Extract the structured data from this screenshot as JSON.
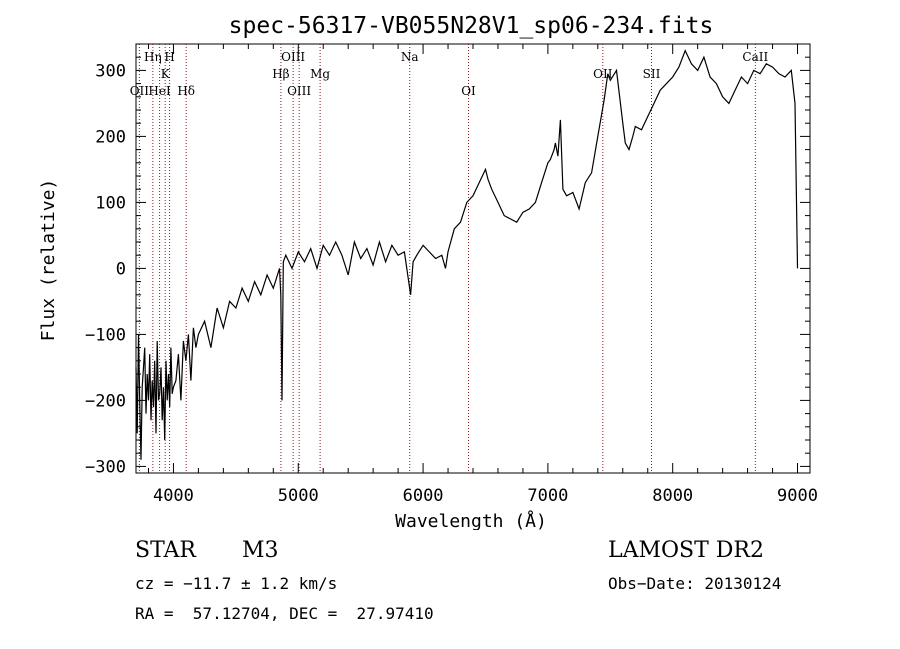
{
  "chart_data": {
    "type": "line",
    "title": "spec-56317-VB055N28V1_sp06-234.fits",
    "xlabel": "Wavelength (Å)",
    "ylabel": "Flux (relative)",
    "xlim": [
      3700,
      9100
    ],
    "ylim": [
      -310,
      340
    ],
    "xticks": [
      4000,
      5000,
      6000,
      7000,
      8000,
      9000
    ],
    "xtick_labels": [
      "4000",
      "5000",
      "6000",
      "7000",
      "8000",
      "9000"
    ],
    "yticks": [
      -300,
      -200,
      -100,
      0,
      100,
      200,
      300
    ],
    "ytick_labels": [
      "−300",
      "−200",
      "−100",
      "0",
      "100",
      "200",
      "300"
    ],
    "grid": false,
    "line_color": "#000000",
    "marker_color": "#8b1a1a",
    "spectral_lines": [
      {
        "label": "OII",
        "wavelength": 3727,
        "row": 3
      },
      {
        "label": "Hη",
        "wavelength": 3835,
        "row": 1
      },
      {
        "label": "HeI",
        "wavelength": 3889,
        "row": 3
      },
      {
        "label": "K",
        "wavelength": 3934,
        "row": 2
      },
      {
        "label": "H",
        "wavelength": 3969,
        "row": 1
      },
      {
        "label": "Hδ",
        "wavelength": 4102,
        "row": 3
      },
      {
        "label": "Hβ",
        "wavelength": 4861,
        "row": 2
      },
      {
        "label": "OIII",
        "wavelength": 4959,
        "row": 1
      },
      {
        "label": "OIII",
        "wavelength": 5007,
        "row": 3
      },
      {
        "label": "Mg",
        "wavelength": 5175,
        "row": 2
      },
      {
        "label": "Na",
        "wavelength": 5893,
        "row": 1
      },
      {
        "label": "OI",
        "wavelength": 6364,
        "row": 3
      },
      {
        "label": "OII",
        "wavelength": 7440,
        "row": 2
      },
      {
        "label": "SII",
        "wavelength": 7830,
        "row": 2
      },
      {
        "label": "CaII",
        "wavelength": 8662,
        "row": 1
      }
    ],
    "series": [
      {
        "x": [
          3700,
          3710,
          3720,
          3730,
          3740,
          3750,
          3760,
          3770,
          3780,
          3790,
          3800,
          3810,
          3820,
          3830,
          3840,
          3850,
          3860,
          3870,
          3880,
          3890,
          3900,
          3910,
          3920,
          3930,
          3940,
          3950,
          3960,
          3970,
          3980,
          3990,
          4000,
          4020,
          4040,
          4060,
          4080,
          4100,
          4120,
          4140,
          4160,
          4180,
          4200,
          4250,
          4300,
          4350,
          4400,
          4450,
          4500,
          4550,
          4600,
          4650,
          4700,
          4750,
          4800,
          4850,
          4860,
          4870,
          4880,
          4900,
          4950,
          5000,
          5050,
          5100,
          5150,
          5200,
          5250,
          5300,
          5350,
          5400,
          5450,
          5500,
          5550,
          5600,
          5650,
          5700,
          5750,
          5800,
          5850,
          5900,
          5920,
          5950,
          6000,
          6050,
          6100,
          6150,
          6180,
          6200,
          6250,
          6300,
          6350,
          6400,
          6450,
          6500,
          6520,
          6550,
          6600,
          6650,
          6700,
          6750,
          6800,
          6850,
          6900,
          6950,
          7000,
          7020,
          7050,
          7060,
          7080,
          7100,
          7120,
          7150,
          7200,
          7250,
          7300,
          7350,
          7400,
          7450,
          7480,
          7500,
          7550,
          7600,
          7620,
          7650,
          7680,
          7700,
          7750,
          7800,
          7850,
          7900,
          7950,
          8000,
          8050,
          8100,
          8150,
          8200,
          8250,
          8300,
          8350,
          8400,
          8450,
          8500,
          8550,
          8600,
          8650,
          8700,
          8750,
          8800,
          8850,
          8900,
          8950,
          8980,
          9000
        ],
        "y": [
          -150,
          -250,
          -100,
          -200,
          -290,
          -180,
          -150,
          -120,
          -220,
          -160,
          -200,
          -130,
          -230,
          -170,
          -210,
          -140,
          -250,
          -110,
          -200,
          -190,
          -150,
          -230,
          -180,
          -260,
          -140,
          -200,
          -160,
          -210,
          -120,
          -190,
          -180,
          -170,
          -130,
          -200,
          -110,
          -140,
          -100,
          -170,
          -90,
          -120,
          -100,
          -80,
          -120,
          -60,
          -90,
          -50,
          -60,
          -30,
          -50,
          -20,
          -40,
          -10,
          -30,
          0,
          -40,
          -200,
          10,
          20,
          0,
          25,
          10,
          30,
          0,
          35,
          20,
          40,
          20,
          -10,
          40,
          15,
          30,
          5,
          40,
          10,
          35,
          20,
          25,
          -40,
          10,
          20,
          35,
          25,
          15,
          20,
          0,
          25,
          60,
          70,
          100,
          110,
          130,
          150,
          135,
          120,
          100,
          80,
          75,
          70,
          85,
          90,
          100,
          130,
          160,
          165,
          180,
          190,
          170,
          225,
          120,
          110,
          115,
          90,
          130,
          145,
          200,
          255,
          295,
          285,
          300,
          220,
          190,
          180,
          200,
          215,
          210,
          230,
          250,
          270,
          280,
          290,
          305,
          330,
          310,
          300,
          320,
          290,
          280,
          260,
          250,
          270,
          290,
          280,
          300,
          295,
          310,
          305,
          295,
          290,
          300,
          250,
          0
        ]
      }
    ]
  },
  "info": {
    "class": "STAR",
    "subclass": "M3",
    "survey": "LAMOST DR2",
    "cz": "cz = −11.7 ± 1.2 km/s",
    "obs_date": "Obs−Date: 20130124",
    "radec": "RA =  57.12704, DEC =  27.97410"
  }
}
